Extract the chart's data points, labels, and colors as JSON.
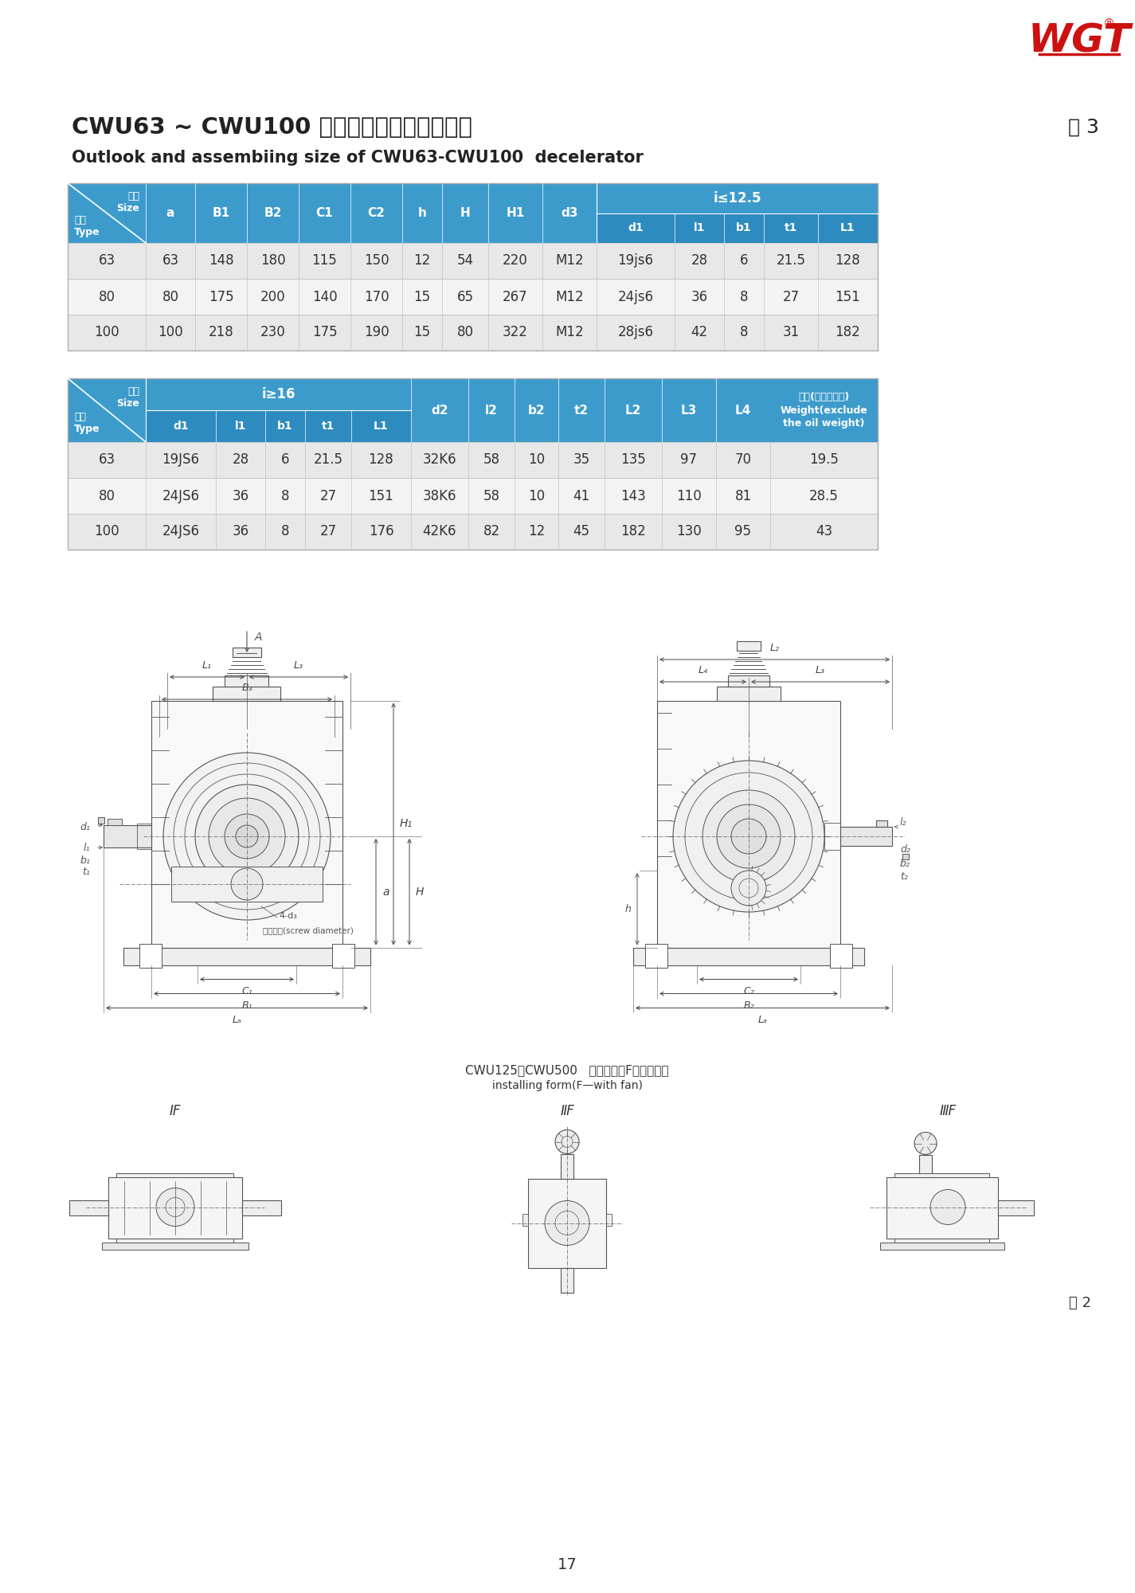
{
  "title_cn": "CWU63 ~ CWU100 型减速器外形及安装尺尸",
  "title_en": "Outlook and assembiing size of CWU63-CWU100  decelerator",
  "table_label": "表 3",
  "logo_text": "WGT",
  "bg_color": "#ffffff",
  "table_header_bg": "#3d9bcc",
  "table_subheader_bg": "#2d8bbf",
  "table_row_bg1": "#e8e8e8",
  "table_row_bg2": "#f3f3f3",
  "table_text": "#333333",
  "table_header_text": "#ffffff",
  "table1_data": [
    [
      "63",
      "63",
      "148",
      "180",
      "115",
      "150",
      "12",
      "54",
      "220",
      "M12",
      "19js6",
      "28",
      "6",
      "21.5",
      "128"
    ],
    [
      "80",
      "80",
      "175",
      "200",
      "140",
      "170",
      "15",
      "65",
      "267",
      "M12",
      "24js6",
      "36",
      "8",
      "27",
      "151"
    ],
    [
      "100",
      "100",
      "218",
      "230",
      "175",
      "190",
      "15",
      "80",
      "322",
      "M12",
      "28js6",
      "42",
      "8",
      "31",
      "182"
    ]
  ],
  "table2_data": [
    [
      "63",
      "19JS6",
      "28",
      "6",
      "21.5",
      "128",
      "32K6",
      "58",
      "10",
      "35",
      "135",
      "97",
      "70",
      "19.5"
    ],
    [
      "80",
      "24JS6",
      "36",
      "8",
      "27",
      "151",
      "38K6",
      "58",
      "10",
      "41",
      "143",
      "110",
      "81",
      "28.5"
    ],
    [
      "100",
      "24JS6",
      "36",
      "8",
      "27",
      "176",
      "42K6",
      "82",
      "12",
      "45",
      "182",
      "130",
      "95",
      "43"
    ]
  ],
  "bottom_label_cn": "CWU125～CWU500  装配型式（F—带风扇）",
  "bottom_label_en": "installing form(F—with fan)",
  "fig_label": "图 2",
  "page_num": "17"
}
